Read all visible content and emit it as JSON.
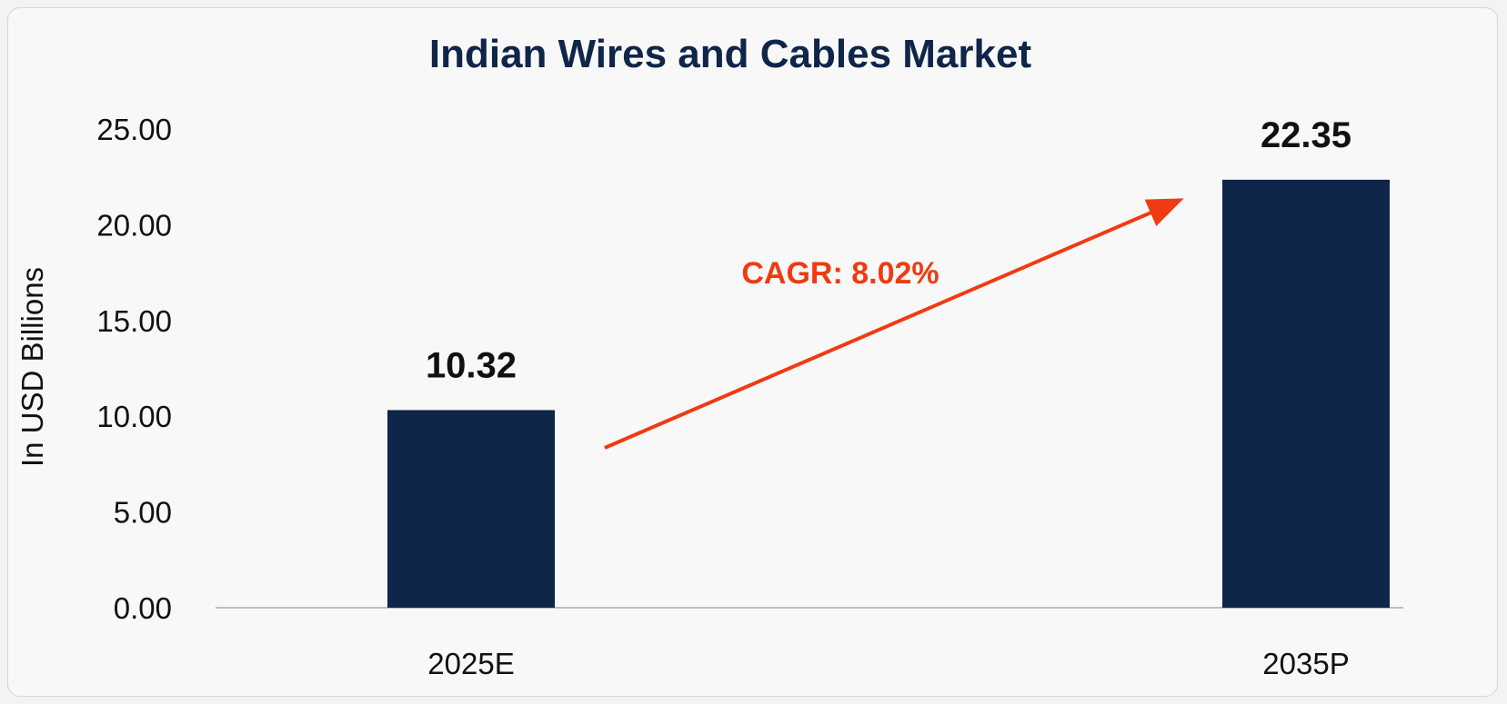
{
  "chart_data": {
    "type": "bar",
    "title": "Indian Wires and Cables Market",
    "xlabel": "",
    "ylabel": "In USD Billions",
    "categories": [
      "2025E",
      "2035P"
    ],
    "values": [
      10.32,
      22.35
    ],
    "data_labels": [
      "10.32",
      "22.35"
    ],
    "ylim": [
      0,
      25
    ],
    "yticks": [
      "0.00",
      "5.00",
      "10.00",
      "15.00",
      "20.00",
      "25.00"
    ],
    "grid": false,
    "annotation": "CAGR: 8.02%"
  },
  "colors": {
    "bar": "#0f2549",
    "title": "#0f2549",
    "annotation": "#f03a12",
    "axis_line": "#bdbdbd",
    "text": "#111111"
  }
}
